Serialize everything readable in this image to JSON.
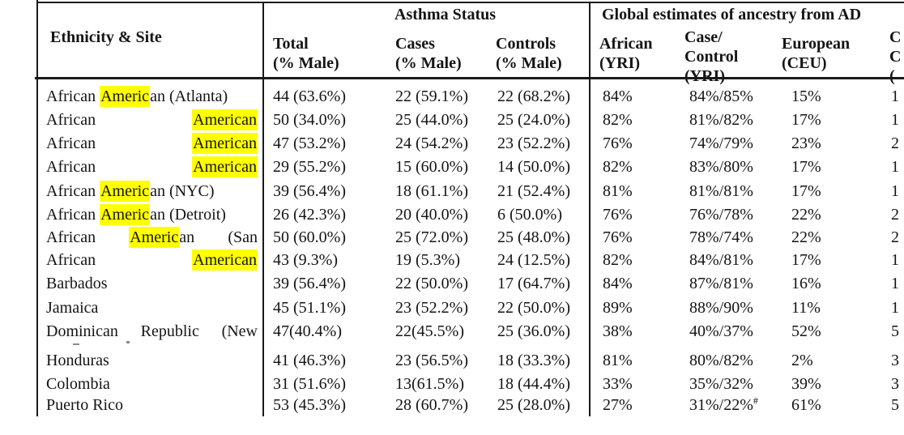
{
  "highlight_color": "#ffff00",
  "header": {
    "col_ethnicity": "Ethnicity & Site",
    "group_asthma": "Asthma Status",
    "group_ancestry": "Global estimates of ancestry from AD",
    "total_l1": "Total",
    "total_l2": "(% Male)",
    "cases_l1": "Cases",
    "cases_l2": "(% Male)",
    "controls_l1": "Controls",
    "controls_l2": "(% Male)",
    "african_l1": "African",
    "african_l2": "(YRI)",
    "cc_yri_l1": "Case/",
    "cc_yri_l2": "Control",
    "cc_yri_l3": "(YRI)",
    "european_l1": "European",
    "european_l2": "(CEU)",
    "cc_ceu_l1": "C",
    "cc_ceu_l2": "C",
    "cc_ceu_l3": "("
  },
  "rows": [
    {
      "justify": false,
      "name": [
        [
          {
            "t": "African ",
            "h": false
          },
          {
            "t": "Americ",
            "h": true
          },
          {
            "t": "an (Atlanta)",
            "h": false
          }
        ]
      ],
      "total": "44 (63.6%)",
      "cases": "22 (59.1%)",
      "controls": "22 (68.2%)",
      "african": "84%",
      "case_control_yri": "84%/85%",
      "european": "15%",
      "case_control_ceu": "1"
    },
    {
      "justify": true,
      "name": [
        [
          {
            "t": "African",
            "h": false
          }
        ],
        [
          {
            "t": "American",
            "h": true
          }
        ]
      ],
      "total": "50 (34.0%)",
      "cases": "25 (44.0%)",
      "controls": "25 (24.0%)",
      "african": "82%",
      "case_control_yri": "81%/82%",
      "european": "17%",
      "case_control_ceu": "1"
    },
    {
      "justify": true,
      "name": [
        [
          {
            "t": "African",
            "h": false
          }
        ],
        [
          {
            "t": "American",
            "h": true
          }
        ]
      ],
      "total": "47 (53.2%)",
      "cases": "24 (54.2%)",
      "controls": "23 (52.2%)",
      "african": "76%",
      "case_control_yri": "74%/79%",
      "european": "23%",
      "case_control_ceu": "2"
    },
    {
      "justify": true,
      "name": [
        [
          {
            "t": "African",
            "h": false
          }
        ],
        [
          {
            "t": "American",
            "h": true
          }
        ]
      ],
      "total": "29 (55.2%)",
      "cases": "15 (60.0%)",
      "controls": "14 (50.0%)",
      "african": "82%",
      "case_control_yri": "83%/80%",
      "european": "17%",
      "case_control_ceu": "1"
    },
    {
      "justify": false,
      "name": [
        [
          {
            "t": "African ",
            "h": false
          },
          {
            "t": "Americ",
            "h": true
          },
          {
            "t": "an (NYC)",
            "h": false
          }
        ]
      ],
      "total": "39 (56.4%)",
      "cases": "18 (61.1%)",
      "controls": "21 (52.4%)",
      "african": "81%",
      "case_control_yri": "81%/81%",
      "european": "17%",
      "case_control_ceu": "1"
    },
    {
      "justify": false,
      "name": [
        [
          {
            "t": "African ",
            "h": false
          },
          {
            "t": "Americ",
            "h": true
          },
          {
            "t": "an (Detroit)",
            "h": false
          }
        ]
      ],
      "total": "26 (42.3%)",
      "cases": "20 (40.0%)",
      "controls": "6 (50.0%)",
      "african": "76%",
      "case_control_yri": "76%/78%",
      "european": "22%",
      "case_control_ceu": "2"
    },
    {
      "justify": true,
      "name": [
        [
          {
            "t": "African",
            "h": false
          }
        ],
        [
          {
            "t": "Americ",
            "h": true
          },
          {
            "t": "an",
            "h": false
          }
        ],
        [
          {
            "t": "(San",
            "h": false
          }
        ]
      ],
      "total": "50 (60.0%)",
      "cases": "25 (72.0%)",
      "controls": "25 (48.0%)",
      "african": "76%",
      "case_control_yri": "78%/74%",
      "european": "22%",
      "case_control_ceu": "2"
    },
    {
      "justify": true,
      "name": [
        [
          {
            "t": "African",
            "h": false
          }
        ],
        [
          {
            "t": "American",
            "h": true
          }
        ]
      ],
      "total": "43 (9.3%)",
      "cases": "19 (5.3%)",
      "controls": "24 (12.5%)",
      "african": "82%",
      "case_control_yri": "84%/81%",
      "european": "17%",
      "case_control_ceu": "1"
    },
    {
      "justify": false,
      "name": [
        [
          {
            "t": "Barbados",
            "h": false
          }
        ]
      ],
      "total": "39 (56.4%)",
      "cases": "22 (50.0%)",
      "controls": "17 (64.7%)",
      "african": "84%",
      "case_control_yri": "87%/81%",
      "european": "16%",
      "case_control_ceu": "1"
    },
    {
      "justify": false,
      "name": [
        [
          {
            "t": "Jamaica",
            "h": false
          }
        ]
      ],
      "total": "45 (51.1%)",
      "cases": "23 (52.2%)",
      "controls": "22 (50.0%)",
      "african": "89%",
      "case_control_yri": "88%/90%",
      "european": "11%",
      "case_control_ceu": "1"
    },
    {
      "justify": true,
      "name": [
        [
          {
            "t": "Dominican",
            "h": false
          }
        ],
        [
          {
            "t": "Republic",
            "h": false
          }
        ],
        [
          {
            "t": "(New",
            "h": false
          }
        ]
      ],
      "total": "47(40.4%)",
      "cases": "22(45.5%)",
      "controls": "25 (36.0%)",
      "african": "38%",
      "case_control_yri": "40%/37%",
      "european": "52%",
      "case_control_ceu": "5"
    },
    {
      "justify": false,
      "name": [
        [
          {
            "t": "Honduras",
            "h": false
          }
        ]
      ],
      "total": "41 (46.3%)",
      "cases": "23 (56.5%)",
      "controls": "18 (33.3%)",
      "african": "81%",
      "case_control_yri": "80%/82%",
      "european": "2%",
      "case_control_ceu": "3"
    },
    {
      "justify": false,
      "name": [
        [
          {
            "t": "Colombia",
            "h": false
          }
        ]
      ],
      "total": "31 (51.6%)",
      "cases": "13(61.5%)",
      "controls": "18 (44.4%)",
      "african": "33%",
      "case_control_yri": "35%/32%",
      "european": "39%",
      "case_control_ceu": "3"
    },
    {
      "justify": false,
      "name": [
        [
          {
            "t": "Puerto Rico",
            "h": false
          }
        ]
      ],
      "total": "53 (45.3%)",
      "cases": "28 (60.7%)",
      "controls": "25 (28.0%)",
      "african": "27%",
      "case_control_yri": "31%/22%",
      "case_control_yri_sup": "#",
      "european": "61%",
      "case_control_ceu": "5"
    }
  ]
}
